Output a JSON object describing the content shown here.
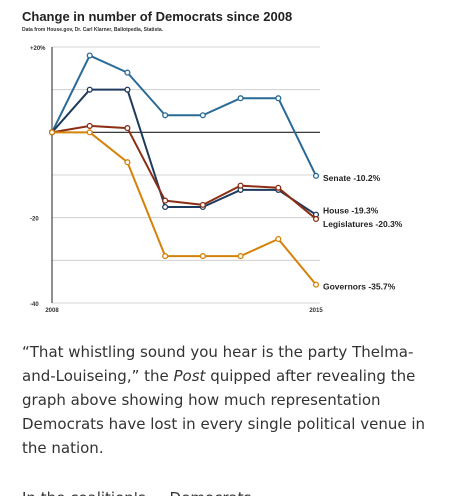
{
  "chart_data": {
    "type": "line",
    "title": "Change in number of Democrats since 2008",
    "source": "Data from House.gov, Dr. Carl Klarner, Ballotpedia, Statista.",
    "x": [
      "2008",
      "2009",
      "2010",
      "2011",
      "2012",
      "2013",
      "2014",
      "2015"
    ],
    "xtick_labels": [
      "2008",
      "2015"
    ],
    "ylim": [
      -40,
      20
    ],
    "ytick_labels": [
      "+20%",
      "-20",
      "-40"
    ],
    "grid": true,
    "series": [
      {
        "name": "Senate",
        "label": "Senate -10.2%",
        "color": "#2a6a96",
        "values": [
          0,
          18,
          14,
          4,
          4,
          8,
          8,
          -10.2
        ]
      },
      {
        "name": "House",
        "label": "House -19.3%",
        "color": "#1e3a5c",
        "values": [
          0,
          10,
          10,
          -17.5,
          -17.5,
          -13.5,
          -13.5,
          -19.3
        ]
      },
      {
        "name": "Legislatures",
        "label": "Legislatures -20.3%",
        "color": "#8b2e14",
        "values": [
          0,
          1.5,
          1,
          -16,
          -17,
          -12.5,
          -13,
          -20.3
        ]
      },
      {
        "name": "Governors",
        "label": "Governors -35.7%",
        "color": "#d4820a",
        "values": [
          0,
          0,
          -7,
          -29,
          -29,
          -29,
          -25,
          -35.7
        ]
      }
    ]
  },
  "caption": {
    "open_quote": "“That whistling sound you hear is the party Thelma-and-Louiseing,” the ",
    "publication": "Post",
    "rest": " quipped after revealing the graph above showing how much representation Democrats have lost in every single political venue in the nation."
  },
  "cutoff_text": "In the coalition's ... Democrats"
}
